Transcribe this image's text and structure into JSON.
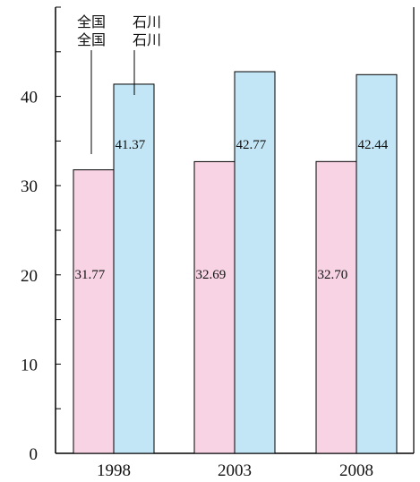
{
  "chart_data": {
    "type": "bar",
    "categories": [
      "1998",
      "2003",
      "2008"
    ],
    "series": [
      {
        "name": "全国",
        "color": "#f7d3e3",
        "values": [
          31.77,
          32.69,
          32.7
        ]
      },
      {
        "name": "石川",
        "color": "#c3e6f6",
        "values": [
          41.37,
          42.77,
          42.44
        ]
      }
    ],
    "value_labels": [
      [
        "31.77",
        "32.69",
        "32.70"
      ],
      [
        "41.37",
        "42.77",
        "42.44"
      ]
    ],
    "legend_text": [
      [
        "全国",
        "全国"
      ],
      [
        "石川",
        "石川"
      ]
    ],
    "ylim": [
      0,
      50
    ],
    "yticks": [
      0,
      10,
      20,
      30,
      40
    ],
    "ytick_labels": [
      "0",
      "10",
      "20",
      "30",
      "40"
    ],
    "minor_tick_step": 5,
    "title": "",
    "xlabel": "",
    "ylabel": "",
    "grid": false
  }
}
